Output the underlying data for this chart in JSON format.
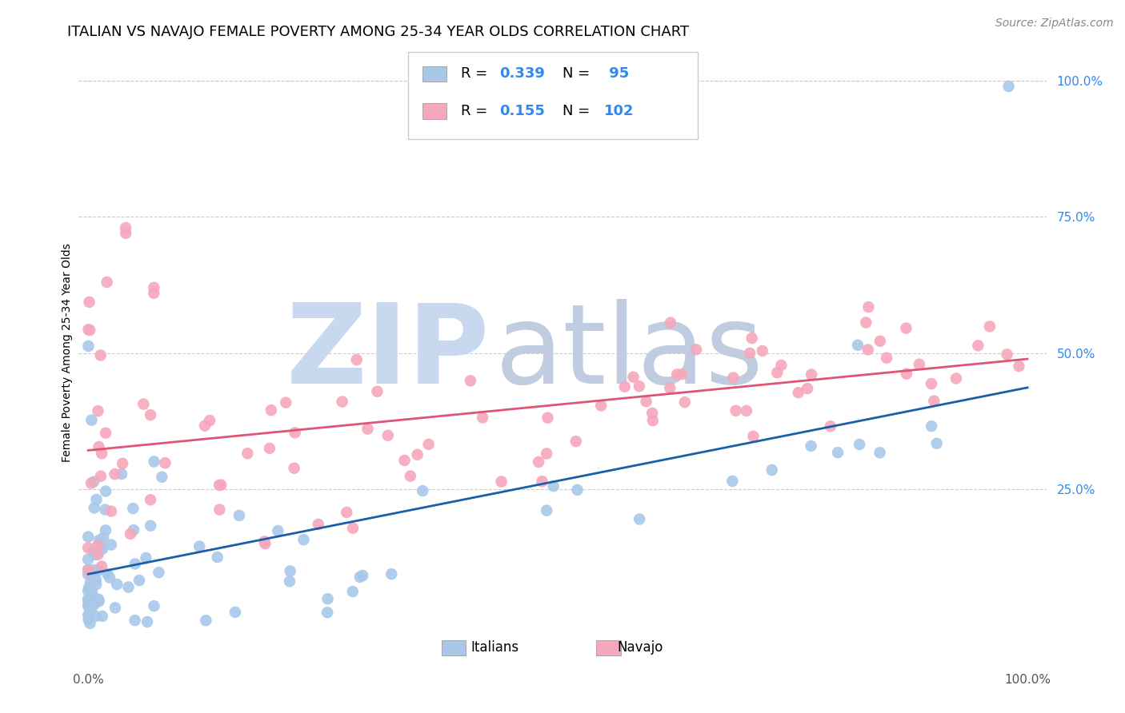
{
  "title": "ITALIAN VS NAVAJO FEMALE POVERTY AMONG 25-34 YEAR OLDS CORRELATION CHART",
  "source": "Source: ZipAtlas.com",
  "ylabel": "Female Poverty Among 25-34 Year Olds",
  "italian_R": 0.339,
  "italian_N": 95,
  "navajo_R": 0.155,
  "navajo_N": 102,
  "italian_color": "#a8c8ea",
  "navajo_color": "#f5a8bc",
  "italian_line_color": "#1a5fa8",
  "navajo_line_color": "#e05575",
  "legend_label_italian": "Italians",
  "legend_label_navajo": "Navajo",
  "background_color": "#ffffff",
  "grid_color": "#cccccc",
  "watermark_zip": "ZIP",
  "watermark_atlas": "atlas",
  "watermark_color_zip": "#c8d8ee",
  "watermark_color_atlas": "#c0cce0",
  "title_fontsize": 13,
  "axis_label_fontsize": 10,
  "tick_fontsize": 11,
  "source_fontsize": 10,
  "right_tick_color": "#3388ee"
}
